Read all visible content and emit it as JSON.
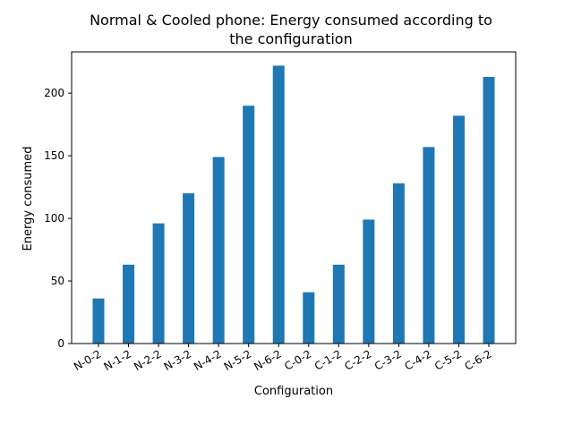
{
  "chart_data": {
    "type": "bar",
    "title_line1": "Normal & Cooled phone: Energy consumed according to",
    "title_line2": "the configuration",
    "xlabel": "Configuration",
    "ylabel": "Energy consumed",
    "categories": [
      "N-0-2",
      "N-1-2",
      "N-2-2",
      "N-3-2",
      "N-4-2",
      "N-5-2",
      "N-6-2",
      "C-0-2",
      "C-1-2",
      "C-2-2",
      "C-3-2",
      "C-4-2",
      "C-5-2",
      "C-6-2"
    ],
    "values": [
      36,
      63,
      96,
      120,
      149,
      190,
      222,
      41,
      63,
      99,
      128,
      157,
      182,
      213
    ],
    "ylim": [
      0,
      233
    ],
    "yticks": [
      0,
      50,
      100,
      150,
      200
    ],
    "grid": false,
    "bar_color": "#1f77b4"
  }
}
